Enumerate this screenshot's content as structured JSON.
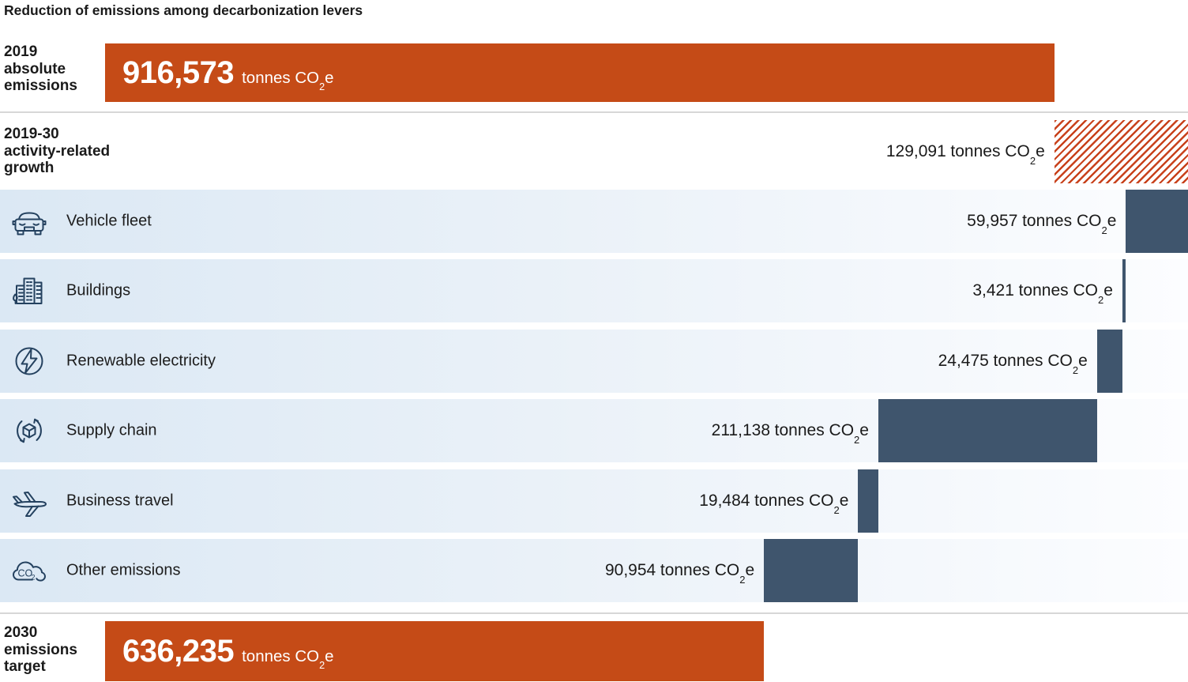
{
  "title": "Reduction of emissions among decarbonization levers",
  "unit": {
    "pre": "tonnes CO",
    "sub": "2",
    "post": "e"
  },
  "rows": {
    "start": {
      "label_lines": [
        "2019",
        "absolute",
        "emissions"
      ],
      "value": "916,573"
    },
    "growth": {
      "label_lines": [
        "2019-30",
        "activity-related",
        "growth"
      ],
      "value": "129,091"
    },
    "end": {
      "label_lines": [
        "2030",
        "emissions",
        "target"
      ],
      "value": "636,235"
    }
  },
  "levers": [
    {
      "label": "Vehicle fleet",
      "value": "59,957",
      "icon": "car-icon"
    },
    {
      "label": "Buildings",
      "value": "3,421",
      "icon": "buildings-icon"
    },
    {
      "label": "Renewable electricity",
      "value": "24,475",
      "icon": "lightning-circle-icon"
    },
    {
      "label": "Supply chain",
      "value": "211,138",
      "icon": "cube-cycle-icon"
    },
    {
      "label": "Business travel",
      "value": "19,484",
      "icon": "airplane-icon"
    },
    {
      "label": "Other emissions",
      "value": "90,954",
      "icon": "co2-cloud-icon"
    }
  ],
  "colors": {
    "accent_orange": "#C54B17",
    "hatch_red": "#C8411B",
    "bar_navy": "#3F556D",
    "row_bg_left": "#DBE8F4",
    "row_bg_right": "#FCFDFF",
    "icon_stroke": "#24415F",
    "divider": "#D7D7D7",
    "text_dark": "#1A1A1A"
  },
  "chart_data": {
    "type": "bar",
    "subtype": "horizontal-waterfall",
    "title": "Reduction of emissions among decarbonization levers",
    "unit": "tonnes CO2e",
    "start": {
      "label": "2019 absolute emissions",
      "value": 916573
    },
    "increase": {
      "label": "2019-30 activity-related growth",
      "value": 129091
    },
    "decreases": [
      {
        "label": "Vehicle fleet",
        "value": 59957
      },
      {
        "label": "Buildings",
        "value": 3421
      },
      {
        "label": "Renewable electricity",
        "value": 24475
      },
      {
        "label": "Supply chain",
        "value": 211138
      },
      {
        "label": "Business travel",
        "value": 19484
      },
      {
        "label": "Other emissions",
        "value": 90954
      }
    ],
    "end": {
      "label": "2030 emissions target",
      "value": 636235
    },
    "axis_range_tonnes": [
      0,
      1045664
    ],
    "grid": false,
    "legend": false
  }
}
